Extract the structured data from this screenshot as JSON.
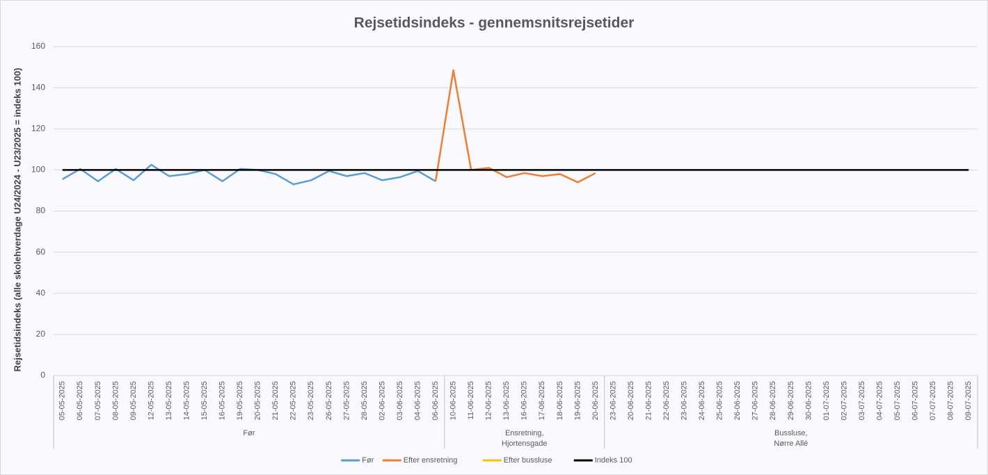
{
  "chart_data": {
    "type": "line",
    "title": "Rejsetidsindeks - gennemsnitsrejsetider",
    "y_label": "Rejsetidsindeks (alle skolehverdage U24/2024 - U23/2025 = indeks 100)",
    "categories": [
      "05-05-2025",
      "06-05-2025",
      "07-05-2025",
      "08-05-2025",
      "09-05-2025",
      "12-05-2025",
      "13-05-2025",
      "14-05-2025",
      "15-05-2025",
      "16-05-2025",
      "19-05-2025",
      "20-05-2025",
      "21-05-2025",
      "22-05-2025",
      "23-05-2025",
      "26-05-2025",
      "27-05-2025",
      "28-05-2025",
      "02-06-2025",
      "03-06-2025",
      "04-06-2025",
      "06-06-2025",
      "10-06-2025",
      "11-06-2025",
      "12-06-2025",
      "13-06-2025",
      "16-06-2025",
      "17-06-2025",
      "18-06-2025",
      "19-06-2025",
      "20-06-2025",
      "23-06-2025",
      "20-06-2025",
      "21-06-2025",
      "22-06-2025",
      "23-06-2025",
      "24-06-2025",
      "25-06-2025",
      "26-06-2025",
      "27-06-2025",
      "28-06-2025",
      "29-06-2025",
      "30-06-2025",
      "01-07-2025",
      "02-07-2025",
      "03-07-2025",
      "04-07-2025",
      "05-07-2025",
      "06-07-2025",
      "07-07-2025",
      "08-07-2025",
      "09-07-2025"
    ],
    "groups": [
      {
        "label": [
          "Før"
        ],
        "categories": [
          0,
          21
        ]
      },
      {
        "label": [
          "Ensretning,",
          "Hjortensgade"
        ],
        "categories": [
          22,
          30
        ]
      },
      {
        "label": [
          "Bussluse,",
          "Nørre Allé"
        ],
        "categories": [
          31,
          51
        ]
      }
    ],
    "series": [
      {
        "name": "Før",
        "color": "#5b9bd5",
        "values": [
          95.5,
          100.5,
          94.5,
          100.5,
          95,
          102.5,
          97,
          98,
          100,
          94.5,
          100.5,
          100,
          98,
          93,
          95,
          99.5,
          97,
          98.5,
          95,
          96.5,
          99.5,
          94.5,
          null,
          null,
          null,
          null,
          null,
          null,
          null,
          null,
          null,
          null,
          null,
          null,
          null,
          null,
          null,
          null,
          null,
          null,
          null,
          null,
          null,
          null,
          null,
          null,
          null,
          null,
          null,
          null,
          null,
          null
        ]
      },
      {
        "name": "Efter ensretning",
        "color": "#ed7d31",
        "values": [
          null,
          null,
          null,
          null,
          null,
          null,
          null,
          null,
          null,
          null,
          null,
          null,
          null,
          null,
          null,
          null,
          null,
          null,
          null,
          null,
          null,
          94.5,
          148.5,
          100,
          101,
          96.5,
          98.5,
          97,
          98,
          94,
          98.5,
          null,
          null,
          null,
          null,
          null,
          null,
          null,
          null,
          null,
          null,
          null,
          null,
          null,
          null,
          null,
          null,
          null,
          null,
          null,
          null,
          null
        ]
      },
      {
        "name": "Efter bussluse",
        "color": "#ffc000",
        "values": [
          null,
          null,
          null,
          null,
          null,
          null,
          null,
          null,
          null,
          null,
          null,
          null,
          null,
          null,
          null,
          null,
          null,
          null,
          null,
          null,
          null,
          null,
          null,
          null,
          null,
          null,
          null,
          null,
          null,
          null,
          null,
          null,
          null,
          null,
          null,
          null,
          null,
          null,
          null,
          null,
          null,
          null,
          null,
          null,
          null,
          null,
          null,
          null,
          null,
          null,
          null,
          null
        ]
      },
      {
        "name": "Indeks 100",
        "color": "#000000",
        "values": [
          100,
          100,
          100,
          100,
          100,
          100,
          100,
          100,
          100,
          100,
          100,
          100,
          100,
          100,
          100,
          100,
          100,
          100,
          100,
          100,
          100,
          100,
          100,
          100,
          100,
          100,
          100,
          100,
          100,
          100,
          100,
          100,
          100,
          100,
          100,
          100,
          100,
          100,
          100,
          100,
          100,
          100,
          100,
          100,
          100,
          100,
          100,
          100,
          100,
          100,
          100,
          100
        ]
      }
    ],
    "ylim": [
      0,
      160
    ],
    "yticks": [
      0,
      20,
      40,
      60,
      80,
      100,
      120,
      140,
      160
    ],
    "grid": true,
    "legend": "bottom"
  }
}
